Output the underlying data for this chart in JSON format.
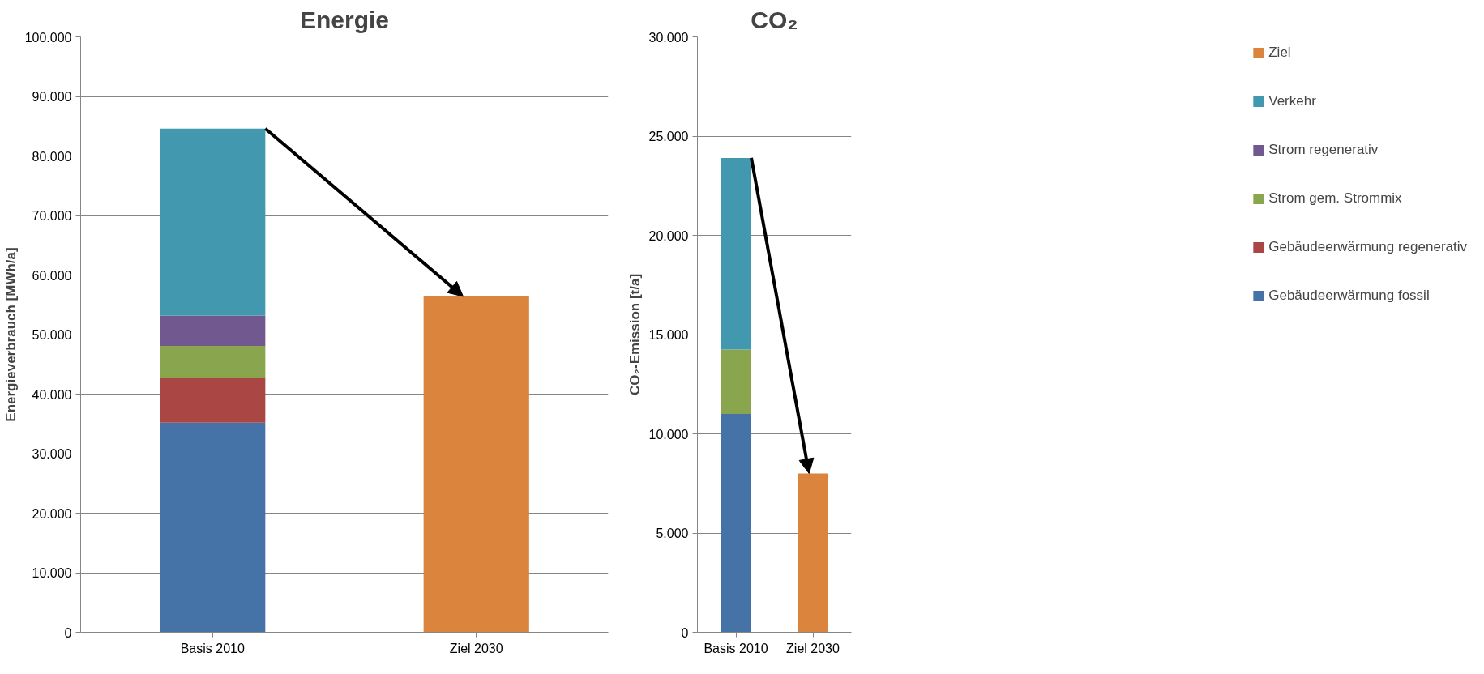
{
  "chart_data": [
    {
      "type": "bar",
      "title": "Energie",
      "ylabel": "Energieverbrauch [MWh/a]",
      "stacked": true,
      "grid": "y",
      "legend": false,
      "categories": [
        "Basis 2010",
        "Ziel 2030"
      ],
      "ylim": [
        0,
        100000
      ],
      "yticks": [
        0,
        {
          "value": 10000,
          "label": "10.000"
        },
        {
          "value": 20000,
          "label": "20.000"
        },
        {
          "value": 30000,
          "label": "30.000"
        },
        {
          "value": 40000,
          "label": "40.000"
        },
        {
          "value": 50000,
          "label": "50.000"
        },
        {
          "value": 60000,
          "label": "60.000"
        },
        {
          "value": 70000,
          "label": "70.000"
        },
        {
          "value": 80000,
          "label": "80.000"
        },
        {
          "value": 90000,
          "label": "90.000"
        },
        {
          "value": 100000,
          "label": "100.000"
        }
      ],
      "series": [
        {
          "color": "#4572a7",
          "values": [
            35200,
            null
          ]
        },
        {
          "color": "#aa4643",
          "values": [
            7600,
            null
          ]
        },
        {
          "color": "#89a54e",
          "values": [
            5300,
            null
          ]
        },
        {
          "color": "#71588f",
          "values": [
            5100,
            null
          ]
        },
        {
          "color": "#4198af",
          "values": [
            31400,
            null
          ]
        },
        {
          "color": "#db843d",
          "values": [
            null,
            56400
          ]
        }
      ]
    },
    {
      "type": "bar",
      "title": "CO₂",
      "ylabel": "CO₂-Emission [t/a]",
      "stacked": true,
      "grid": "y",
      "legend": "right",
      "categories": [
        "Basis 2010",
        "Ziel 2030"
      ],
      "ylim": [
        0,
        30000
      ],
      "yticks": [
        0,
        {
          "value": 5000,
          "label": "5.000"
        },
        {
          "value": 10000,
          "label": "10.000"
        },
        {
          "value": 15000,
          "label": "15.000"
        },
        {
          "value": 20000,
          "label": "20.000"
        },
        {
          "value": 25000,
          "label": "25.000"
        },
        {
          "value": 30000,
          "label": "30.000"
        }
      ],
      "series": [
        {
          "name": "Gebäudeerwärmung fossil",
          "color": "#4572a7",
          "values": [
            11000,
            null
          ]
        },
        {
          "name": "Gebäudeerwärmung regenerativ",
          "color": "#aa4643",
          "values": [
            0,
            null
          ]
        },
        {
          "name": "Strom gem. Strommix",
          "color": "#89a54e",
          "values": [
            3250,
            null
          ]
        },
        {
          "name": "Strom regenerativ",
          "color": "#71588f",
          "values": [
            0,
            null
          ]
        },
        {
          "name": "Verkehr",
          "color": "#4198af",
          "values": [
            9650,
            null
          ]
        },
        {
          "name": "Ziel",
          "color": "#db843d",
          "values": [
            null,
            8000
          ]
        }
      ]
    }
  ]
}
